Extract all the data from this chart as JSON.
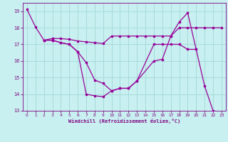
{
  "background_color": "#c8f0f0",
  "line_color": "#990099",
  "grid_color": "#a8dada",
  "xlabel": "Windchill (Refroidissement éolien,°C)",
  "xlabel_color": "#800080",
  "tick_color": "#800080",
  "ylim": [
    13,
    19.5
  ],
  "xlim": [
    -0.5,
    23.5
  ],
  "yticks": [
    13,
    14,
    15,
    16,
    17,
    18,
    19
  ],
  "xticks": [
    0,
    1,
    2,
    3,
    4,
    5,
    6,
    7,
    8,
    9,
    10,
    11,
    12,
    13,
    14,
    15,
    16,
    17,
    18,
    19,
    20,
    21,
    22,
    23
  ],
  "line1_x": [
    0,
    1,
    2,
    3,
    4,
    5,
    6,
    7,
    8,
    9,
    10,
    11,
    12,
    13,
    15,
    16,
    17,
    18,
    19,
    20,
    21,
    22,
    23
  ],
  "line1_y": [
    19.1,
    18.05,
    17.25,
    17.25,
    17.1,
    17.0,
    16.55,
    14.0,
    13.9,
    13.85,
    14.2,
    14.35,
    14.35,
    14.8,
    16.0,
    16.1,
    17.5,
    18.35,
    18.9,
    16.7,
    14.5,
    13.0,
    12.85
  ],
  "line2_x": [
    2,
    3,
    4,
    5,
    6,
    7,
    8,
    9,
    10,
    11,
    12,
    13,
    14,
    15,
    16,
    17,
    18,
    19,
    20,
    21,
    22,
    23
  ],
  "line2_y": [
    17.25,
    17.35,
    17.35,
    17.3,
    17.2,
    17.15,
    17.1,
    17.05,
    17.5,
    17.5,
    17.5,
    17.5,
    17.5,
    17.5,
    17.5,
    17.5,
    18.0,
    18.0,
    18.0,
    18.0,
    18.0,
    18.0
  ],
  "line3_x": [
    2,
    3,
    4,
    5,
    6,
    7,
    8,
    9,
    10,
    11,
    12,
    13,
    15,
    16,
    17,
    18,
    19,
    20
  ],
  "line3_y": [
    17.25,
    17.25,
    17.1,
    17.0,
    16.55,
    15.9,
    14.85,
    14.65,
    14.2,
    14.35,
    14.35,
    14.8,
    17.0,
    17.0,
    17.0,
    17.0,
    16.7,
    16.7
  ]
}
